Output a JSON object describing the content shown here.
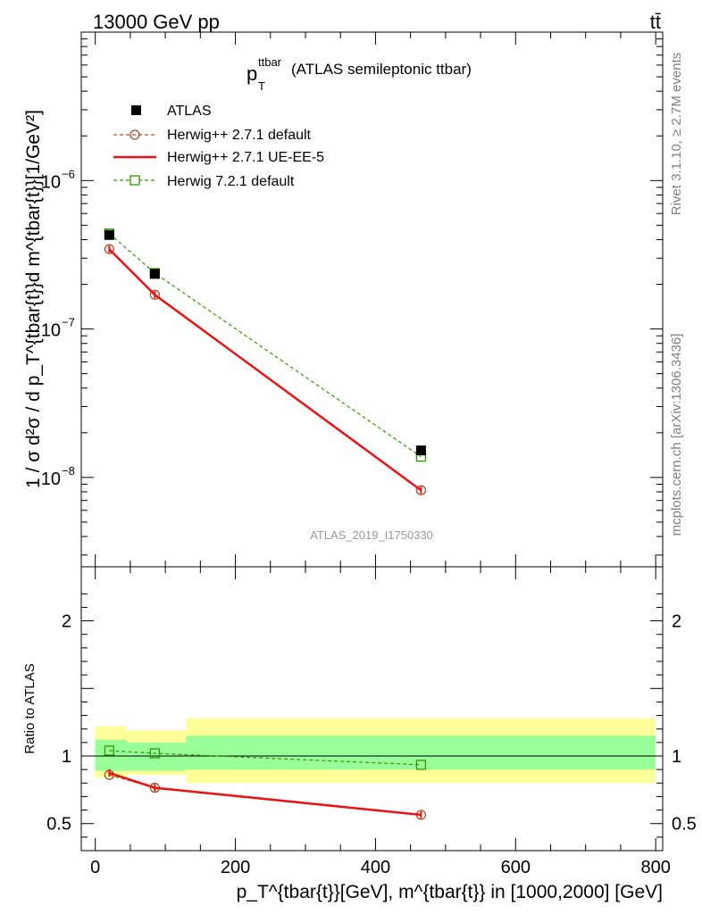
{
  "header": {
    "left": "13000 GeV pp",
    "right": "tt̄"
  },
  "side": {
    "rivet": "Rivet 3.1.10, ≥ 2.7M events",
    "mcplots": "mcplots.cern.ch [arXiv:1306.3436]"
  },
  "plot_title": {
    "var": "p",
    "var_sub": "T",
    "var_sup": "ttbar",
    "rest": "(ATLAS semileptonic ttbar)"
  },
  "analysis_id": "ATLAS_2019_I1750330",
  "labels": {
    "y_main": "1 / σ d²σ / d p_T^{tbar{t}}d m^{tbar{t}}[1/GeV²]",
    "y_ratio": "Ratio to ATLAS",
    "x": "p_T^{tbar{t}}[GeV], m^{tbar{t}} in [1000,2000] [GeV]"
  },
  "colors": {
    "atlas": "#000000",
    "herwig_default": "#a0522d",
    "herwig_ue": "#ee1111",
    "herwig72": "#339900",
    "band_inner": "#99ff99",
    "band_outer": "#ffff99"
  },
  "chart_data": [
    {
      "type": "scatter",
      "panel": "main",
      "yscale": "log",
      "xlim": [
        -20,
        810
      ],
      "ylim": [
        2.5e-09,
        1e-05
      ],
      "y_ticks": [
        {
          "value": 1e-08,
          "mant": "10",
          "exp": "−8"
        },
        {
          "value": 1e-07,
          "mant": "10",
          "exp": "−7"
        },
        {
          "value": 1e-06,
          "mant": "10",
          "exp": "−6"
        }
      ],
      "legend_position": "top-left",
      "series": [
        {
          "name": "ATLAS",
          "style": "data",
          "x": [
            20,
            85,
            465
          ],
          "y": [
            4.3e-07,
            2.35e-07,
            1.52e-08
          ]
        },
        {
          "name": "Herwig++ 2.7.1 default",
          "style": "dashed-circle",
          "x": [
            20,
            85,
            465
          ],
          "y": [
            3.45e-07,
            1.7e-07,
            8.2e-09
          ]
        },
        {
          "name": "Herwig++ 2.7.1 UE-EE-5",
          "style": "solid",
          "x": [
            20,
            85,
            465
          ],
          "y": [
            3.45e-07,
            1.7e-07,
            8.2e-09
          ]
        },
        {
          "name": "Herwig 7.2.1 default",
          "style": "dashed-square",
          "x": [
            20,
            85,
            465
          ],
          "y": [
            4.4e-07,
            2.38e-07,
            1.38e-08
          ]
        }
      ]
    },
    {
      "type": "line",
      "panel": "ratio",
      "xlim": [
        -20,
        810
      ],
      "ylim": [
        0.3,
        2.4
      ],
      "x_ticks": [
        0,
        200,
        400,
        600,
        800
      ],
      "y_ticks": [
        0.5,
        1,
        2
      ],
      "bins": [
        {
          "lo": 0,
          "hi": 45,
          "inner": [
            0.89,
            1.12
          ],
          "outer": [
            0.84,
            1.22
          ]
        },
        {
          "lo": 45,
          "hi": 130,
          "inner": [
            0.89,
            1.1
          ],
          "outer": [
            0.86,
            1.19
          ]
        },
        {
          "lo": 130,
          "hi": 800,
          "inner": [
            0.9,
            1.15
          ],
          "outer": [
            0.8,
            1.28
          ]
        }
      ],
      "series": [
        {
          "name": "Herwig++ 2.7.1 default",
          "style": "dashed-circle",
          "x": [
            20,
            85,
            465
          ],
          "y": [
            0.86,
            0.765,
            0.565
          ]
        },
        {
          "name": "Herwig++ 2.7.1 UE-EE-5",
          "style": "solid",
          "x": [
            20,
            85,
            465
          ],
          "y": [
            0.875,
            0.765,
            0.565
          ]
        },
        {
          "name": "Herwig 7.2.1 default",
          "style": "dashed-square",
          "x": [
            20,
            85,
            465
          ],
          "y": [
            1.04,
            1.02,
            0.935
          ]
        }
      ]
    }
  ]
}
